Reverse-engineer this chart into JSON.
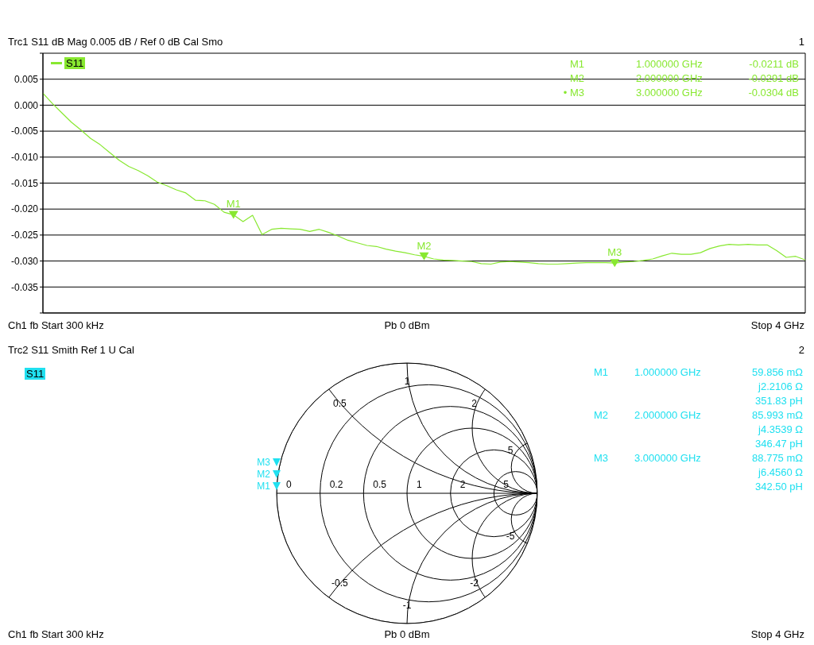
{
  "chart_data": [
    {
      "type": "line",
      "title": "Trc1 S11 dB Mag 0.005 dB / Ref 0 dB Cal Smo",
      "categories": [
        null,
        null,
        null,
        null,
        null,
        null,
        null,
        null,
        null,
        null,
        null,
        null,
        null,
        null,
        null,
        null,
        null,
        null,
        null,
        null,
        null,
        null,
        null,
        null,
        null,
        null,
        null,
        null,
        null,
        null,
        null,
        null,
        null,
        null,
        null,
        null,
        null,
        null,
        null,
        null,
        null,
        null,
        null,
        null,
        null,
        null,
        null,
        null,
        null,
        null,
        null,
        null,
        null,
        null,
        null,
        null,
        null,
        null,
        null,
        null,
        null,
        null,
        null,
        null,
        null,
        null,
        null,
        null,
        null,
        null,
        null,
        null,
        null,
        null,
        null,
        null,
        null,
        null,
        null,
        null,
        null
      ],
      "series": [
        {
          "name": "S11",
          "color": "#88e830",
          "values": [
            0.0023,
            0.0003,
            -0.0015,
            -0.0033,
            -0.0048,
            -0.0064,
            -0.0076,
            -0.0091,
            -0.0106,
            -0.0118,
            -0.0126,
            -0.0136,
            -0.0148,
            -0.0155,
            -0.0163,
            -0.0169,
            -0.0183,
            -0.0184,
            -0.0191,
            -0.0206,
            -0.0211,
            -0.0224,
            -0.0212,
            -0.0249,
            -0.0239,
            -0.0237,
            -0.0238,
            -0.0239,
            -0.0243,
            -0.0239,
            -0.0245,
            -0.0252,
            -0.026,
            -0.0265,
            -0.027,
            -0.0272,
            -0.0277,
            -0.0281,
            -0.0284,
            -0.0288,
            -0.0291,
            -0.0296,
            -0.0298,
            -0.0299,
            -0.03,
            -0.0301,
            -0.0305,
            -0.0306,
            -0.0302,
            -0.0301,
            -0.0302,
            -0.0303,
            -0.0305,
            -0.0306,
            -0.0306,
            -0.0305,
            -0.0304,
            -0.0303,
            -0.0303,
            -0.0303,
            -0.0304,
            -0.0302,
            -0.0301,
            -0.0299,
            -0.0296,
            -0.029,
            -0.0285,
            -0.0287,
            -0.0287,
            -0.0284,
            -0.0276,
            -0.0271,
            -0.0268,
            -0.0269,
            -0.0268,
            -0.0269,
            -0.0269,
            -0.028,
            -0.0293,
            -0.0291,
            -0.0298
          ]
        },
        {
          "type": "scatter",
          "marker": "triangle",
          "color": "#88e830",
          "values": [
            null,
            null,
            null,
            null,
            null,
            null,
            null,
            null,
            null,
            null,
            null,
            null,
            null,
            null,
            null,
            null,
            null,
            null,
            null,
            null,
            -0.0211,
            null,
            null,
            null,
            null,
            null,
            null,
            null,
            null,
            null,
            null,
            null,
            null,
            null,
            null,
            null,
            null,
            null,
            null,
            null,
            -0.0291,
            null,
            null,
            null,
            null,
            null,
            null,
            null,
            null,
            null,
            null,
            null,
            null,
            null,
            null,
            null,
            null,
            null,
            null,
            null,
            -0.0304,
            null,
            null,
            null,
            null,
            null,
            null,
            null,
            null,
            null,
            null,
            null,
            null,
            null,
            null,
            null,
            null,
            null,
            null,
            null,
            null
          ],
          "value_labels": [
            null,
            null,
            null,
            null,
            null,
            null,
            null,
            null,
            null,
            null,
            null,
            null,
            null,
            null,
            null,
            null,
            null,
            null,
            null,
            null,
            "M1",
            null,
            null,
            null,
            null,
            null,
            null,
            null,
            null,
            null,
            null,
            null,
            null,
            null,
            null,
            null,
            null,
            null,
            null,
            null,
            "M2",
            null,
            null,
            null,
            null,
            null,
            null,
            null,
            null,
            null,
            null,
            null,
            null,
            null,
            null,
            null,
            null,
            null,
            null,
            null,
            "M3",
            null,
            null,
            null,
            null,
            null,
            null,
            null,
            null,
            null,
            null,
            null,
            null,
            null,
            null,
            null,
            null,
            null,
            null,
            null,
            null
          ]
        }
      ],
      "ylim": [
        -0.04,
        0.01
      ],
      "yticks": [
        {
          "value": 0.01,
          "label": null
        },
        0.005,
        {
          "value": 0,
          "label": "0.000"
        },
        -0.005,
        {
          "value": -0.01,
          "label": "-0.010"
        },
        -0.015,
        {
          "value": -0.02,
          "label": "-0.020"
        },
        -0.025,
        {
          "value": -0.03,
          "label": "-0.030"
        },
        -0.035,
        {
          "value": -0.04,
          "label": null
        }
      ],
      "tick_labels": "y",
      "grid": true,
      "legend": "top left",
      "annotations": [
        "1",
        "M1",
        "1.000000 GHz",
        "-0.0211 dB",
        "M2",
        "2.000000 GHz",
        "-0.0291 dB",
        "• M3",
        "3.000000 GHz",
        "-0.0304 dB",
        "Ch1 fb Start 300 kHz",
        "Pb 0 dBm",
        "Stop 4 GHz"
      ]
    },
    {
      "type": "other",
      "title": "Trc2 S11 Smith Ref 1 U Cal",
      "color": "#20e0f0",
      "annotations": [
        "2",
        "S11",
        "Ch1 fb Start 300 kHz",
        "Pb 0 dBm",
        "Stop 4 GHz",
        "M1",
        "1.000000 GHz",
        "59.856 mΩ",
        "j2.2106 Ω",
        "351.83 pH",
        "M2",
        "2.000000 GHz",
        "85.993 mΩ",
        "j4.3539 Ω",
        "346.47 pH",
        "M3",
        "3.000000 GHz",
        "88.775 mΩ",
        "j6.4560 Ω",
        "342.50 pH",
        "0",
        "0.2",
        "0.5",
        "1",
        "2",
        "5",
        "0.5",
        "1",
        "2",
        "5",
        "-0.5",
        "-1",
        "-2",
        "-5"
      ]
    }
  ]
}
